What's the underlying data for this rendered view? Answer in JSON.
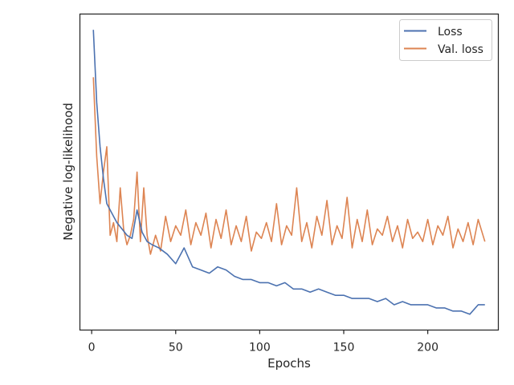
{
  "chart_data": {
    "type": "line",
    "title": "",
    "xlabel": "Epochs",
    "ylabel": "Negative log-likelihood",
    "xlim": [
      -7,
      242
    ],
    "ylim": [
      0,
      1
    ],
    "y_tick_labels_shown": false,
    "x_ticks": [
      0,
      50,
      100,
      150,
      200
    ],
    "x_tick_labels": [
      "0",
      "50",
      "100",
      "150",
      "200"
    ],
    "grid": false,
    "legend_position": "top-right",
    "series": [
      {
        "name": "Loss",
        "color": "#4c72b0",
        "x": [
          1,
          3,
          5,
          7,
          9,
          12,
          15,
          18,
          21,
          24,
          27,
          30,
          33,
          36,
          40,
          45,
          50,
          55,
          60,
          65,
          70,
          75,
          80,
          85,
          90,
          95,
          100,
          105,
          110,
          115,
          120,
          125,
          130,
          135,
          140,
          145,
          150,
          155,
          160,
          165,
          170,
          175,
          180,
          185,
          190,
          195,
          200,
          205,
          210,
          215,
          220,
          225,
          230,
          234
        ],
        "values": [
          0.95,
          0.72,
          0.58,
          0.48,
          0.4,
          0.37,
          0.34,
          0.32,
          0.3,
          0.29,
          0.38,
          0.31,
          0.28,
          0.27,
          0.26,
          0.24,
          0.21,
          0.26,
          0.2,
          0.19,
          0.18,
          0.2,
          0.19,
          0.17,
          0.16,
          0.16,
          0.15,
          0.15,
          0.14,
          0.15,
          0.13,
          0.13,
          0.12,
          0.13,
          0.12,
          0.11,
          0.11,
          0.1,
          0.1,
          0.1,
          0.09,
          0.1,
          0.08,
          0.09,
          0.08,
          0.08,
          0.08,
          0.07,
          0.07,
          0.06,
          0.06,
          0.05,
          0.08,
          0.08
        ]
      },
      {
        "name": "Val. loss",
        "color": "#dd8452",
        "x": [
          1,
          3,
          5,
          7,
          9,
          11,
          13,
          15,
          17,
          19,
          21,
          23,
          25,
          27,
          29,
          31,
          33,
          35,
          38,
          41,
          44,
          47,
          50,
          53,
          56,
          59,
          62,
          65,
          68,
          71,
          74,
          77,
          80,
          83,
          86,
          89,
          92,
          95,
          98,
          101,
          104,
          107,
          110,
          113,
          116,
          119,
          122,
          125,
          128,
          131,
          134,
          137,
          140,
          143,
          146,
          149,
          152,
          155,
          158,
          161,
          164,
          167,
          170,
          173,
          176,
          179,
          182,
          185,
          188,
          191,
          194,
          197,
          200,
          203,
          206,
          209,
          212,
          215,
          218,
          221,
          224,
          227,
          230,
          234
        ],
        "values": [
          0.8,
          0.55,
          0.4,
          0.5,
          0.58,
          0.3,
          0.34,
          0.28,
          0.45,
          0.32,
          0.27,
          0.3,
          0.35,
          0.5,
          0.28,
          0.45,
          0.3,
          0.24,
          0.3,
          0.25,
          0.36,
          0.28,
          0.33,
          0.3,
          0.38,
          0.27,
          0.34,
          0.3,
          0.37,
          0.26,
          0.35,
          0.29,
          0.38,
          0.27,
          0.33,
          0.28,
          0.36,
          0.25,
          0.31,
          0.29,
          0.34,
          0.28,
          0.4,
          0.27,
          0.33,
          0.3,
          0.45,
          0.28,
          0.34,
          0.26,
          0.36,
          0.3,
          0.41,
          0.27,
          0.33,
          0.29,
          0.42,
          0.26,
          0.35,
          0.28,
          0.38,
          0.27,
          0.32,
          0.3,
          0.36,
          0.28,
          0.33,
          0.26,
          0.35,
          0.29,
          0.31,
          0.28,
          0.35,
          0.27,
          0.33,
          0.3,
          0.36,
          0.26,
          0.32,
          0.28,
          0.34,
          0.27,
          0.35,
          0.28
        ]
      }
    ]
  }
}
